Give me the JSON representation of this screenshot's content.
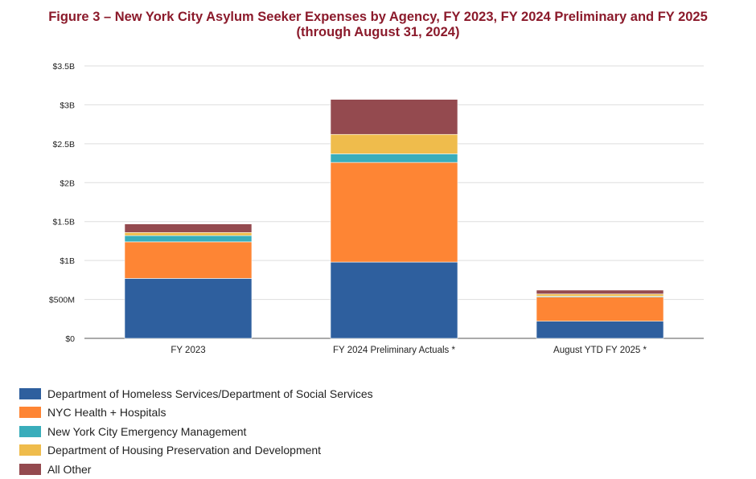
{
  "chart_data": {
    "type": "bar",
    "stacked": true,
    "title_line1": "Figure 3 – New York City Asylum Seeker Expenses by Agency, FY 2023, FY 2024 Preliminary and FY 2025",
    "title_line2": "(through August 31, 2024)",
    "categories": [
      "FY 2023",
      "FY 2024 Preliminary Actuals *",
      "August YTD FY 2025 *"
    ],
    "y_ticks": [
      {
        "value": 0,
        "label": "$0"
      },
      {
        "value": 0.5,
        "label": "$500M"
      },
      {
        "value": 1.0,
        "label": "$1B"
      },
      {
        "value": 1.5,
        "label": "$1.5B"
      },
      {
        "value": 2.0,
        "label": "$2B"
      },
      {
        "value": 2.5,
        "label": "$2.5B"
      },
      {
        "value": 3.0,
        "label": "$3B"
      },
      {
        "value": 3.5,
        "label": "$3.5B"
      }
    ],
    "ylim": [
      0,
      3.5
    ],
    "y_units": "billions of dollars",
    "grid": true,
    "legend_position": "bottom-left",
    "series": [
      {
        "name": "Department of Homeless Services/Department of Social Services",
        "color": "#2e5f9e",
        "values": [
          0.77,
          0.98,
          0.22
        ]
      },
      {
        "name": "NYC Health + Hospitals",
        "color": "#fe8534",
        "values": [
          0.47,
          1.28,
          0.31
        ]
      },
      {
        "name": "New York City Emergency Management",
        "color": "#39adbb",
        "values": [
          0.08,
          0.11,
          0.01
        ]
      },
      {
        "name": "Department of Housing Preservation and Development",
        "color": "#efbc4c",
        "values": [
          0.04,
          0.25,
          0.03
        ]
      },
      {
        "name": "All Other",
        "color": "#944a4f",
        "values": [
          0.11,
          0.45,
          0.05
        ]
      }
    ]
  }
}
